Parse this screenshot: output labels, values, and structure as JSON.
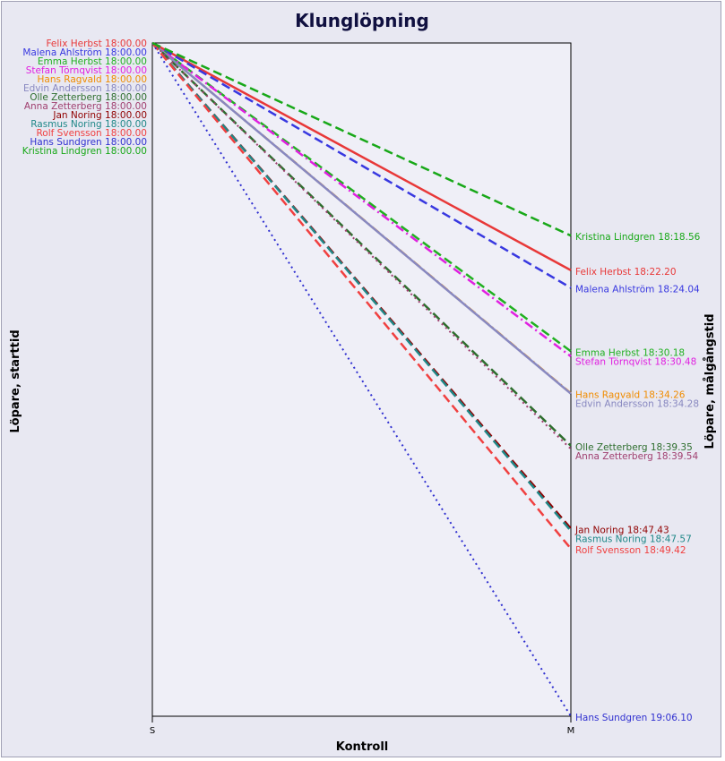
{
  "chart_data": {
    "type": "line",
    "title": "Klunglöpning",
    "xlabel": "Kontroll",
    "ylabel_left": "Löpare, starttid",
    "ylabel_right": "Löpare, målgångstid",
    "x": [
      "S",
      "M"
    ],
    "grid": false,
    "series": [
      {
        "name": "Felix Herbst",
        "start": "18:00.00",
        "finish": "18:22.20",
        "start_label": "Felix Herbst 18:00.00",
        "finish_label": "Felix Herbst 18:22.20",
        "color": "#e83838",
        "dash": "solid"
      },
      {
        "name": "Malena Ahlström",
        "start": "18:00.00",
        "finish": "18:24.04",
        "start_label": "Malena Ahlström 18:00.00",
        "finish_label": "Malena Ahlström 18:24.04",
        "color": "#3838e0",
        "dash": "dashed"
      },
      {
        "name": "Emma Herbst",
        "start": "18:00.00",
        "finish": "18:30.18",
        "start_label": "Emma Herbst 18:00.00",
        "finish_label": "Emma Herbst 18:30.18",
        "color": "#20b020",
        "dash": "dashed"
      },
      {
        "name": "Stefan Törnqvist",
        "start": "18:00.00",
        "finish": "18:30.48",
        "start_label": "Stefan Törnqvist 18:00.00",
        "finish_label": "Stefan Törnqvist 18:30.48",
        "color": "#e020e0",
        "dash": "dashdot"
      },
      {
        "name": "Hans Ragvald",
        "start": "18:00.00",
        "finish": "18:34.26",
        "start_label": "Hans Ragvald 18:00.00",
        "finish_label": "Hans Ragvald 18:34.26",
        "color": "#f08c00",
        "dash": "dashdot"
      },
      {
        "name": "Edvin Andersson",
        "start": "18:00.00",
        "finish": "18:34.28",
        "start_label": "Edvin Andersson 18:00.00",
        "finish_label": "Edvin Andersson 18:34.28",
        "color": "#8888c0",
        "dash": "solid"
      },
      {
        "name": "Olle Zetterberg",
        "start": "18:00.00",
        "finish": "18:39.35",
        "start_label": "Olle Zetterberg 18:00.00",
        "finish_label": "Olle Zetterberg 18:39.35",
        "color": "#2e6e2e",
        "dash": "dashed"
      },
      {
        "name": "Anna Zetterberg",
        "start": "18:00.00",
        "finish": "18:39.54",
        "start_label": "Anna Zetterberg 18:00.00",
        "finish_label": "Anna Zetterberg 18:39.54",
        "color": "#a04070",
        "dash": "dotted"
      },
      {
        "name": "Jan Noring",
        "start": "18:00.00",
        "finish": "18:47.43",
        "start_label": "Jan Noring 18:00.00",
        "finish_label": "Jan Noring 18:47.43",
        "color": "#900000",
        "dash": "dashed"
      },
      {
        "name": "Rasmus Noring",
        "start": "18:00.00",
        "finish": "18:47.57",
        "start_label": "Rasmus Noring 18:00.00",
        "finish_label": "Rasmus Noring 18:47.57",
        "color": "#208888",
        "dash": "dashed"
      },
      {
        "name": "Rolf Svensson",
        "start": "18:00.00",
        "finish": "18:49.42",
        "start_label": "Rolf Svensson 18:00.00",
        "finish_label": "Rolf Svensson 18:49.42",
        "color": "#f04040",
        "dash": "dashed"
      },
      {
        "name": "Hans Sundgren",
        "start": "18:00.00",
        "finish": "19:06.10",
        "start_label": "Hans Sundgren 18:00.00",
        "finish_label": "Hans Sundgren 19:06.10",
        "color": "#3030d0",
        "dash": "dotted"
      },
      {
        "name": "Kristina Lindgren",
        "start": "18:00.00",
        "finish": "18:18.56",
        "start_label": "Kristina Lindgren 18:00.00",
        "finish_label": "Kristina Lindgren 18:18.56",
        "color": "#18a818",
        "dash": "dashed"
      }
    ]
  }
}
